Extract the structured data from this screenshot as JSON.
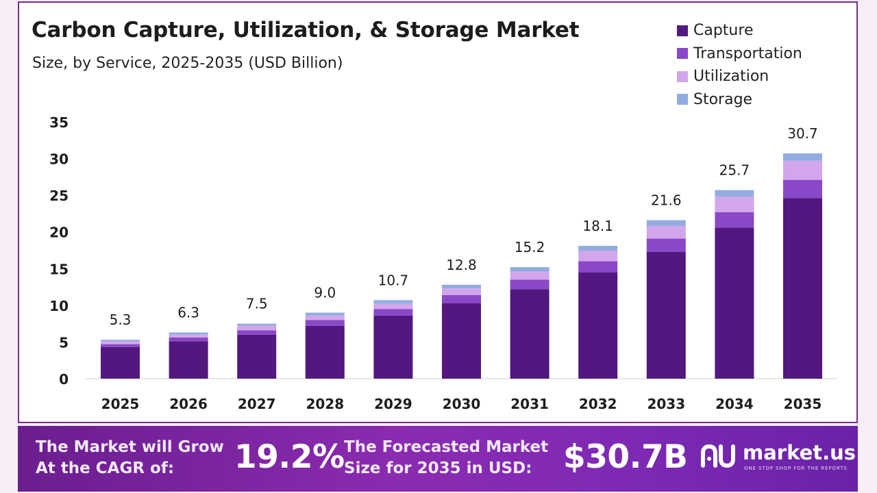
{
  "header": {
    "title": "Carbon Capture, Utilization, & Storage  Market",
    "subtitle": "Size, by Service, 2025-2035 (USD Billion)"
  },
  "chart_data": {
    "type": "bar",
    "stacked": true,
    "title": "Carbon Capture, Utilization, & Storage  Market",
    "subtitle": "Size, by Service, 2025-2035 (USD Billion)",
    "categories": [
      "2025",
      "2026",
      "2027",
      "2028",
      "2029",
      "2030",
      "2031",
      "2032",
      "2033",
      "2034",
      "2035"
    ],
    "totals": [
      5.3,
      6.3,
      7.5,
      9.0,
      10.7,
      12.8,
      15.2,
      18.1,
      21.6,
      25.7,
      30.7
    ],
    "total_labels": [
      "5.3",
      "6.3",
      "7.5",
      "9.0",
      "10.7",
      "12.8",
      "15.2",
      "18.1",
      "21.6",
      "25.7",
      "30.7"
    ],
    "series": [
      {
        "name": "Capture",
        "color": "#52187f",
        "values": [
          4.3,
          5.1,
          6.0,
          7.2,
          8.6,
          10.3,
          12.2,
          14.5,
          17.3,
          20.6,
          24.6
        ]
      },
      {
        "name": "Transportation",
        "color": "#8a48c8",
        "values": [
          0.4,
          0.5,
          0.6,
          0.8,
          0.9,
          1.1,
          1.3,
          1.5,
          1.8,
          2.1,
          2.5
        ]
      },
      {
        "name": "Utilization",
        "color": "#d2a6ea",
        "values": [
          0.4,
          0.4,
          0.6,
          0.6,
          0.7,
          0.9,
          1.1,
          1.4,
          1.7,
          2.1,
          2.6
        ]
      },
      {
        "name": "Storage",
        "color": "#93acdf",
        "values": [
          0.2,
          0.3,
          0.3,
          0.4,
          0.5,
          0.5,
          0.6,
          0.7,
          0.8,
          0.9,
          1.0
        ]
      }
    ],
    "ylim": [
      0,
      35
    ],
    "yticks": [
      0,
      5,
      10,
      15,
      20,
      25,
      30,
      35
    ],
    "grid": false,
    "legend_position": "top-right"
  },
  "footer": {
    "cagr_label_line1": "The Market will Grow",
    "cagr_label_line2": "At the CAGR of:",
    "cagr_value": "19.2%",
    "forecast_label_line1": "The Forecasted Market",
    "forecast_label_line2": "Size for 2035 in USD:",
    "forecast_value": "$30.7B",
    "brand_name": "market.us",
    "brand_tagline": "ONE STOP SHOP FOR THE REPORTS"
  }
}
